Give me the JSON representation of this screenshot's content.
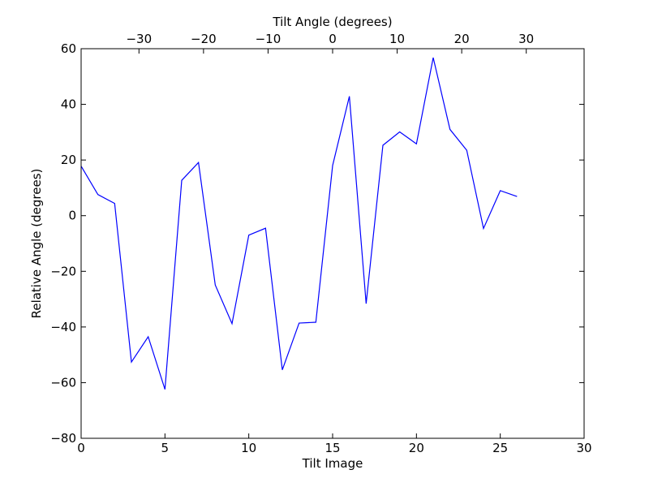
{
  "chart_data": {
    "type": "line",
    "xlabel": "Tilt Image",
    "ylabel": "Relative Angle (degrees)",
    "top_xlabel": "Tilt Angle (degrees)",
    "xlim": [
      0,
      30
    ],
    "ylim": [
      -80,
      60
    ],
    "x_ticks": [
      0,
      5,
      10,
      15,
      20,
      25,
      30
    ],
    "y_ticks": [
      -80,
      -60,
      -40,
      -20,
      0,
      20,
      40,
      60
    ],
    "top_x_ticks": [
      {
        "label": "−30",
        "value": -30
      },
      {
        "label": "−20",
        "value": -20
      },
      {
        "label": "−10",
        "value": -10
      },
      {
        "label": "0",
        "value": 0
      },
      {
        "label": "10",
        "value": 10
      },
      {
        "label": "20",
        "value": 20
      },
      {
        "label": "30",
        "value": 30
      }
    ],
    "top_axis_mapping": {
      "tilt_image_at_zero_degrees": 15,
      "tilt_images_per_10_degrees": 3.85
    },
    "grid": false,
    "line_color": "#0000ff",
    "series": [
      {
        "x": [
          0,
          1,
          2,
          3,
          4,
          5,
          6,
          7,
          8,
          9,
          10,
          11,
          12,
          13,
          14,
          15,
          16,
          17,
          18,
          19,
          20,
          21,
          22,
          23,
          24,
          25,
          26
        ],
        "y": [
          17.8,
          7.6,
          4.4,
          -52.6,
          -43.5,
          -62.4,
          12.7,
          19.1,
          -24.9,
          -38.8,
          -7.0,
          -4.5,
          -55.4,
          -38.6,
          -38.3,
          18.0,
          42.9,
          -31.6,
          25.3,
          30.1,
          25.8,
          56.8,
          31.0,
          23.5,
          -4.6,
          9.0,
          6.9
        ]
      }
    ]
  }
}
